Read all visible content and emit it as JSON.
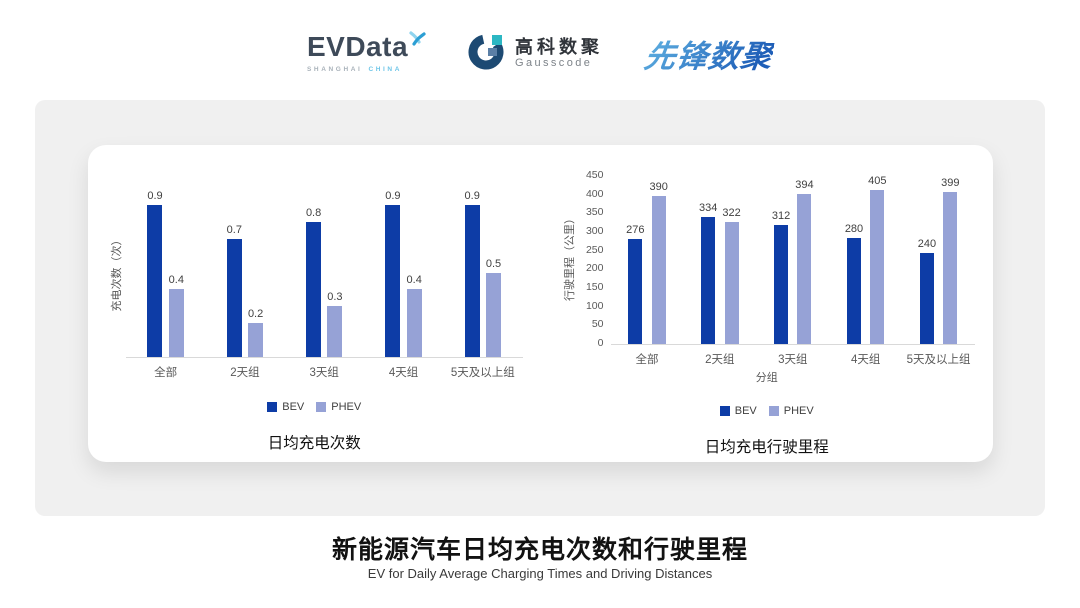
{
  "header": {
    "evdata": {
      "name": "EVData",
      "sub_left": "SHANGHAI",
      "sub_right": "CHINA"
    },
    "gausscode": {
      "cn": "高科数聚",
      "en": "Gausscode"
    },
    "pioneer": {
      "text": "先锋数聚"
    }
  },
  "colors": {
    "bev": "#0d3ca6",
    "phev": "#96a2d6",
    "axis": "#d9d9d9",
    "evdata_accent": "#6fc6e8",
    "gausscode_navy": "#1d4a73",
    "gausscode_teal": "#2cb7c3",
    "pioneer_blue": "#2a72c4"
  },
  "chart_data": [
    {
      "type": "bar",
      "title": "日均充电次数",
      "ylabel": "充电次数（次）",
      "xlabel": "",
      "categories": [
        "全部",
        "2天组",
        "3天组",
        "4天组",
        "5天及以上组"
      ],
      "series": [
        {
          "name": "BEV",
          "values": [
            0.9,
            0.7,
            0.8,
            0.9,
            0.9
          ]
        },
        {
          "name": "PHEV",
          "values": [
            0.4,
            0.2,
            0.3,
            0.4,
            0.5
          ]
        }
      ],
      "ylim": [
        0,
        1
      ],
      "yticks": [],
      "grid": false,
      "legend_position": "bottom",
      "data_labels": true
    },
    {
      "type": "bar",
      "title": "日均充电行驶里程",
      "ylabel": "行驶里程（公里）",
      "xlabel": "分组",
      "categories": [
        "全部",
        "2天组",
        "3天组",
        "4天组",
        "5天及以上组"
      ],
      "series": [
        {
          "name": "BEV",
          "values": [
            276,
            334,
            312,
            280,
            240
          ]
        },
        {
          "name": "PHEV",
          "values": [
            390,
            322,
            394,
            405,
            399
          ]
        }
      ],
      "ylim": [
        0,
        450
      ],
      "yticks": [
        450,
        400,
        350,
        300,
        250,
        200,
        150,
        100,
        50,
        0
      ],
      "grid": false,
      "legend_position": "bottom",
      "data_labels": true
    }
  ],
  "footer": {
    "title": "新能源汽车日均充电次数和行驶里程",
    "subtitle": "EV for Daily Average Charging Times and Driving Distances"
  }
}
